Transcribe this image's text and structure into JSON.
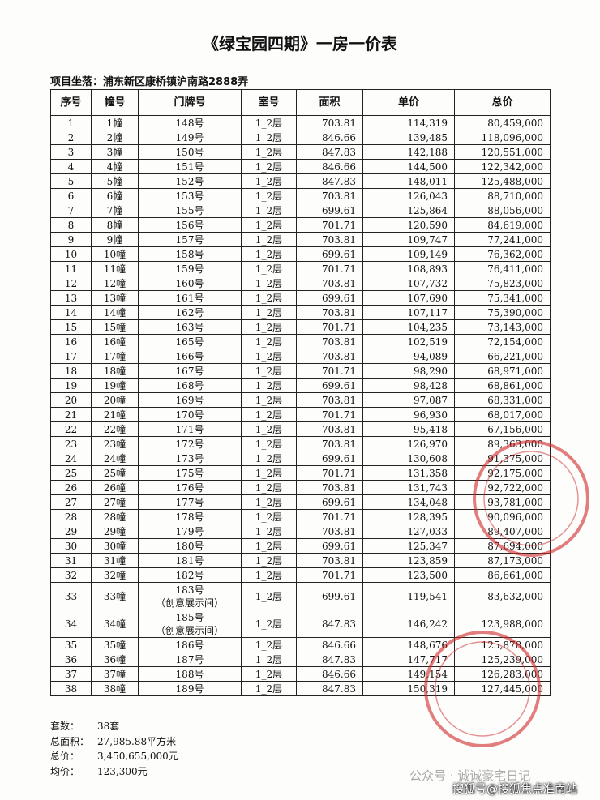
{
  "header": {
    "title": "《绿宝园四期》一房一价表",
    "project_label": "项目坐落：",
    "project_address": "浦东新区康桥镇沪南路2888弄"
  },
  "table": {
    "columns": [
      "序号",
      "幢号",
      "门牌号",
      "室号",
      "面积",
      "单价",
      "总价"
    ],
    "rows": [
      [
        "1",
        "1幢",
        "148号",
        "1_2层",
        "703.81",
        "114,319",
        "80,459,000"
      ],
      [
        "2",
        "2幢",
        "149号",
        "1_2层",
        "846.66",
        "139,485",
        "118,096,000"
      ],
      [
        "3",
        "3幢",
        "150号",
        "1_2层",
        "847.83",
        "142,188",
        "120,551,000"
      ],
      [
        "4",
        "4幢",
        "151号",
        "1_2层",
        "846.66",
        "144,500",
        "122,342,000"
      ],
      [
        "5",
        "5幢",
        "152号",
        "1_2层",
        "847.83",
        "148,011",
        "125,488,000"
      ],
      [
        "6",
        "6幢",
        "153号",
        "1_2层",
        "703.81",
        "126,043",
        "88,710,000"
      ],
      [
        "7",
        "7幢",
        "155号",
        "1_2层",
        "699.61",
        "125,864",
        "88,056,000"
      ],
      [
        "8",
        "8幢",
        "156号",
        "1_2层",
        "701.71",
        "120,590",
        "84,619,000"
      ],
      [
        "9",
        "9幢",
        "157号",
        "1_2层",
        "703.81",
        "109,747",
        "77,241,000"
      ],
      [
        "10",
        "10幢",
        "158号",
        "1_2层",
        "699.61",
        "109,149",
        "76,362,000"
      ],
      [
        "11",
        "11幢",
        "159号",
        "1_2层",
        "701.71",
        "108,893",
        "76,411,000"
      ],
      [
        "12",
        "12幢",
        "160号",
        "1_2层",
        "703.81",
        "107,732",
        "75,823,000"
      ],
      [
        "13",
        "13幢",
        "161号",
        "1_2层",
        "699.61",
        "107,690",
        "75,341,000"
      ],
      [
        "14",
        "14幢",
        "162号",
        "1_2层",
        "703.81",
        "107,117",
        "75,390,000"
      ],
      [
        "15",
        "15幢",
        "163号",
        "1_2层",
        "701.71",
        "104,235",
        "73,143,000"
      ],
      [
        "16",
        "16幢",
        "165号",
        "1_2层",
        "703.81",
        "102,519",
        "72,154,000"
      ],
      [
        "17",
        "17幢",
        "166号",
        "1_2层",
        "703.81",
        "94,089",
        "66,221,000"
      ],
      [
        "18",
        "18幢",
        "167号",
        "1_2层",
        "701.71",
        "98,290",
        "68,971,000"
      ],
      [
        "19",
        "19幢",
        "168号",
        "1_2层",
        "699.61",
        "98,428",
        "68,861,000"
      ],
      [
        "20",
        "20幢",
        "169号",
        "1_2层",
        "703.81",
        "97,087",
        "68,331,000"
      ],
      [
        "21",
        "21幢",
        "170号",
        "1_2层",
        "701.71",
        "96,930",
        "68,017,000"
      ],
      [
        "22",
        "22幢",
        "171号",
        "1_2层",
        "703.81",
        "95,418",
        "67,156,000"
      ],
      [
        "23",
        "23幢",
        "172号",
        "1_2层",
        "703.81",
        "126,970",
        "89,363,000"
      ],
      [
        "24",
        "24幢",
        "173号",
        "1_2层",
        "699.61",
        "130,608",
        "91,375,000"
      ],
      [
        "25",
        "25幢",
        "175号",
        "1_2层",
        "701.71",
        "131,358",
        "92,175,000"
      ],
      [
        "26",
        "26幢",
        "176号",
        "1_2层",
        "703.81",
        "131,743",
        "92,722,000"
      ],
      [
        "27",
        "27幢",
        "177号",
        "1_2层",
        "699.61",
        "134,048",
        "93,781,000"
      ],
      [
        "28",
        "28幢",
        "178号",
        "1_2层",
        "701.71",
        "128,395",
        "90,096,000"
      ],
      [
        "29",
        "29幢",
        "179号",
        "1_2层",
        "703.81",
        "127,033",
        "89,407,000"
      ],
      [
        "30",
        "30幢",
        "180号",
        "1_2层",
        "699.61",
        "125,347",
        "87,694,000"
      ],
      [
        "31",
        "31幢",
        "181号",
        "1_2层",
        "703.81",
        "123,859",
        "87,173,000"
      ],
      [
        "32",
        "32幢",
        "182号",
        "1_2层",
        "701.71",
        "123,500",
        "86,661,000"
      ],
      [
        "33",
        "33幢",
        [
          "183号",
          "（创意展示间）"
        ],
        "1_2层",
        "699.61",
        "119,541",
        "83,632,000"
      ],
      [
        "34",
        "34幢",
        [
          "185号",
          "（创意展示间）"
        ],
        "1_2层",
        "847.83",
        "146,242",
        "123,988,000"
      ],
      [
        "35",
        "35幢",
        "186号",
        "1_2层",
        "846.66",
        "148,676",
        "125,878,000"
      ],
      [
        "36",
        "36幢",
        "187号",
        "1_2层",
        "847.83",
        "147,717",
        "125,239,000"
      ],
      [
        "37",
        "37幢",
        "188号",
        "1_2层",
        "846.66",
        "149,154",
        "126,283,000"
      ],
      [
        "38",
        "38幢",
        "189号",
        "1_2层",
        "847.83",
        "150,319",
        "127,445,000"
      ]
    ]
  },
  "summary": [
    [
      "套数：",
      "38套"
    ],
    [
      "总面积：",
      "27,985.88平方米"
    ],
    [
      "总价：",
      "3,450,655,000元"
    ],
    [
      "均价：",
      "123,300元"
    ]
  ],
  "watermarks": [
    "公众号 · 诚诚豪宅日记",
    "搜狐号@搜狐焦点准南站"
  ]
}
